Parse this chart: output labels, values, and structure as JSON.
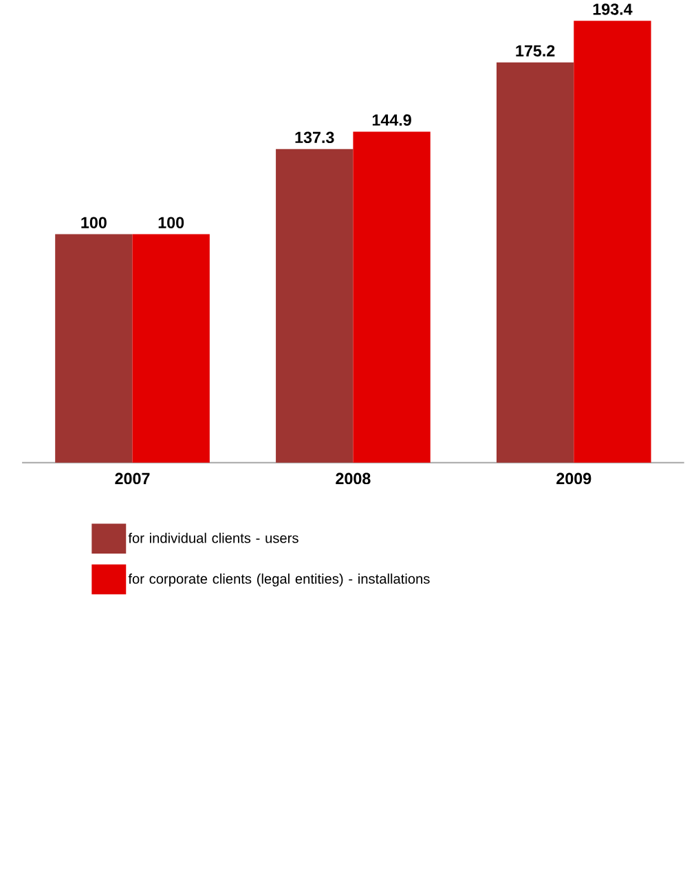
{
  "chart_data": {
    "type": "bar",
    "categories": [
      "2007",
      "2008",
      "2009"
    ],
    "series": [
      {
        "name": "for individual clients - users",
        "color": "#9e3532",
        "values": [
          100,
          137.3,
          175.2
        ]
      },
      {
        "name": "for corporate clients (legal entities) - installations",
        "color": "#e30000",
        "values": [
          100,
          144.9,
          193.4
        ]
      }
    ],
    "data_labels": true,
    "legend": "bottom",
    "tick_labels": "x"
  }
}
